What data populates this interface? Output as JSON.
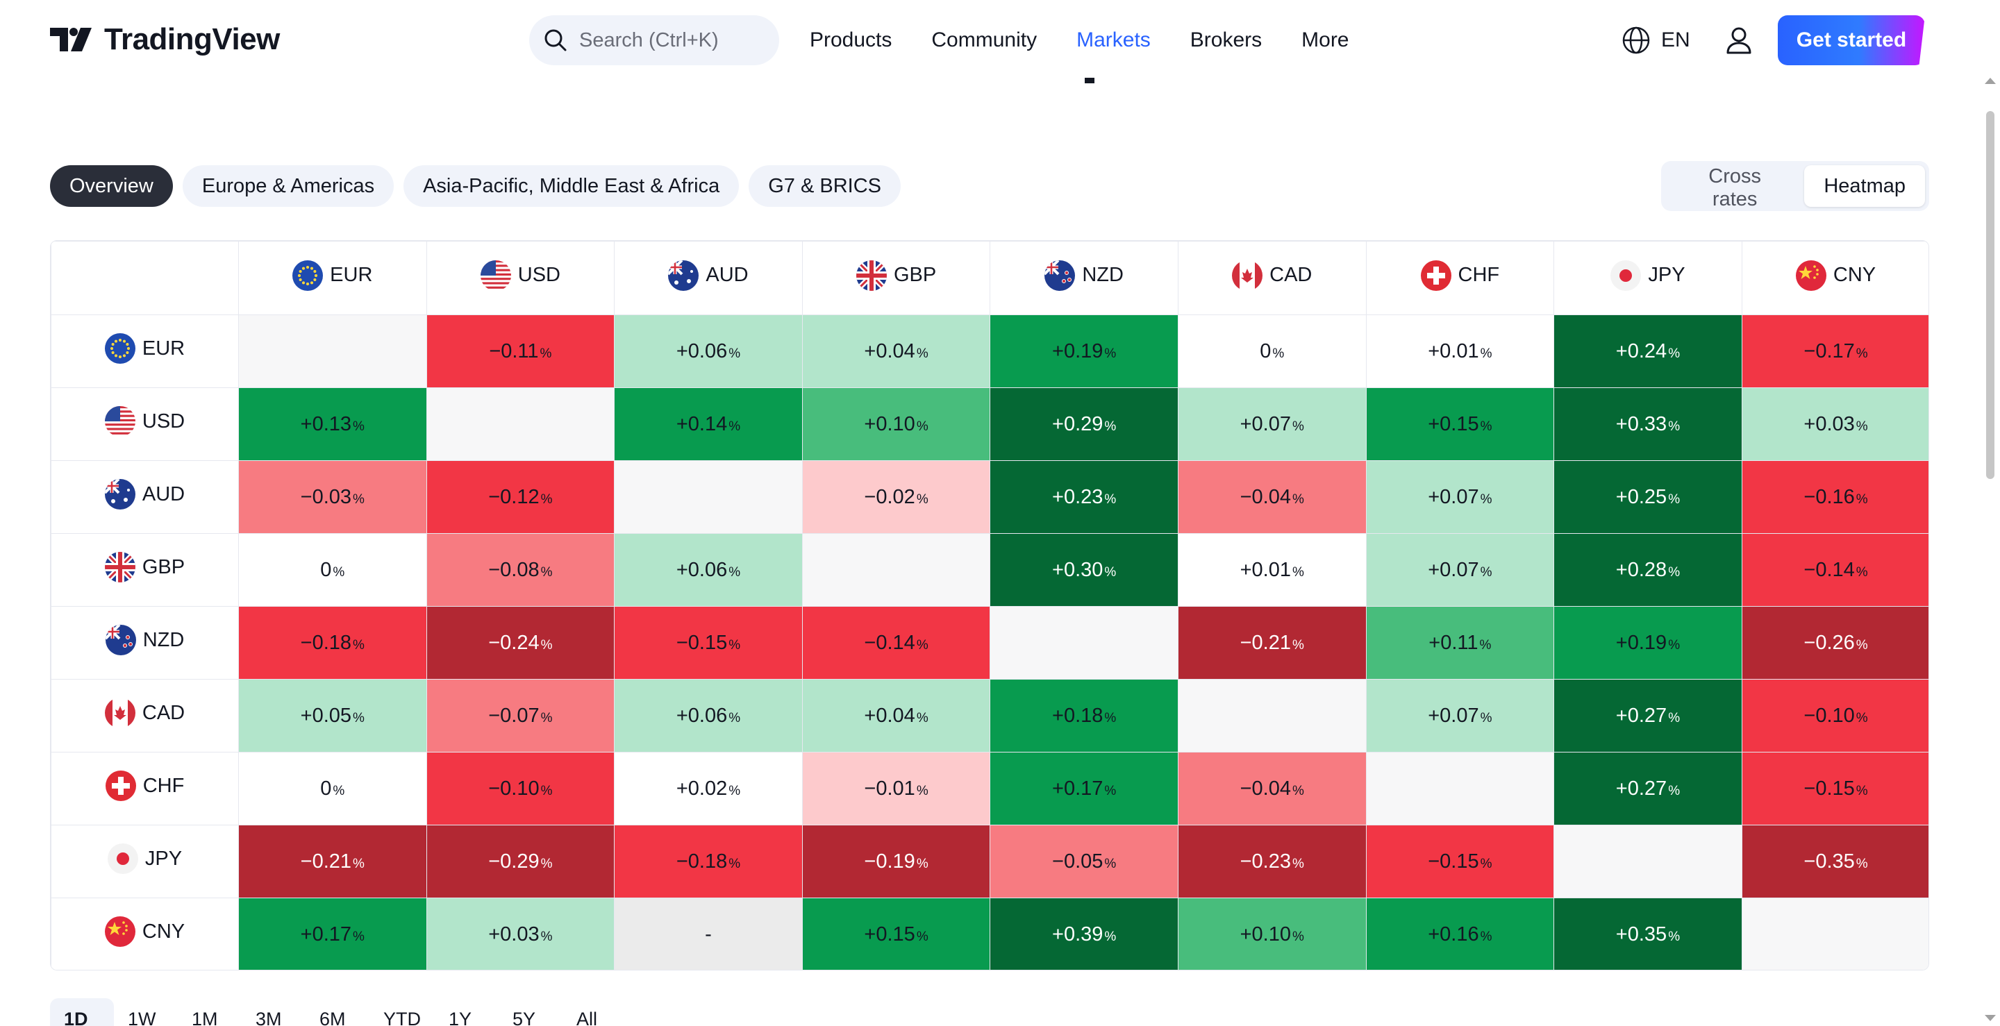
{
  "header": {
    "logo_text": "TradingView",
    "search_placeholder": "Search (Ctrl+K)",
    "nav": [
      {
        "label": "Products",
        "active": false
      },
      {
        "label": "Community",
        "active": false
      },
      {
        "label": "Markets",
        "active": true
      },
      {
        "label": "Brokers",
        "active": false
      },
      {
        "label": "More",
        "active": false
      }
    ],
    "language": "EN",
    "cta_label": "Get started"
  },
  "region_tabs": [
    "Overview",
    "Europe & Americas",
    "Asia-Pacific, Middle East & Africa",
    "G7 & BRICS"
  ],
  "active_region_tab": "Overview",
  "view_toggle": [
    "Cross rates",
    "Heatmap"
  ],
  "active_view": "Heatmap",
  "heatmap": {
    "currencies": [
      "EUR",
      "USD",
      "AUD",
      "GBP",
      "NZD",
      "CAD",
      "CHF",
      "JPY",
      "CNY"
    ],
    "unit": "%",
    "rows": [
      {
        "base": "EUR",
        "cells": [
          null,
          "−0.11",
          "+0.06",
          "+0.04",
          "+0.19",
          "0",
          "+0.01",
          "+0.24",
          "−0.17"
        ]
      },
      {
        "base": "USD",
        "cells": [
          "+0.13",
          null,
          "+0.14",
          "+0.10",
          "+0.29",
          "+0.07",
          "+0.15",
          "+0.33",
          "+0.03"
        ]
      },
      {
        "base": "AUD",
        "cells": [
          "−0.03",
          "−0.12",
          null,
          "−0.02",
          "+0.23",
          "−0.04",
          "+0.07",
          "+0.25",
          "−0.16"
        ]
      },
      {
        "base": "GBP",
        "cells": [
          "0",
          "−0.08",
          "+0.06",
          null,
          "+0.30",
          "+0.01",
          "+0.07",
          "+0.28",
          "−0.14"
        ]
      },
      {
        "base": "NZD",
        "cells": [
          "−0.18",
          "−0.24",
          "−0.15",
          "−0.14",
          null,
          "−0.21",
          "+0.11",
          "+0.19",
          "−0.26"
        ]
      },
      {
        "base": "CAD",
        "cells": [
          "+0.05",
          "−0.07",
          "+0.06",
          "+0.04",
          "+0.18",
          null,
          "+0.07",
          "+0.27",
          "−0.10"
        ]
      },
      {
        "base": "CHF",
        "cells": [
          "0",
          "−0.10",
          "+0.02",
          "−0.01",
          "+0.17",
          "−0.04",
          null,
          "+0.27",
          "−0.15"
        ]
      },
      {
        "base": "JPY",
        "cells": [
          "−0.21",
          "−0.29",
          "−0.18",
          "−0.19",
          "−0.05",
          "−0.23",
          "−0.15",
          null,
          "−0.35"
        ]
      },
      {
        "base": "CNY",
        "cells": [
          "+0.17",
          "+0.03",
          "-",
          "+0.15",
          "+0.39",
          "+0.10",
          "+0.16",
          "+0.35",
          null
        ]
      }
    ],
    "cell_classes": [
      [
        "c-empty",
        "c-r3",
        "c-g1",
        "c-g1",
        "c-g3",
        "c-zero",
        "c-zero",
        "c-g4",
        "c-r3"
      ],
      [
        "c-g3",
        "c-empty",
        "c-g3",
        "c-g2",
        "c-g4",
        "c-g1",
        "c-g3",
        "c-g4",
        "c-g1"
      ],
      [
        "c-r2",
        "c-r3",
        "c-empty",
        "c-r1",
        "c-g4",
        "c-r2",
        "c-g1",
        "c-g4",
        "c-r3"
      ],
      [
        "c-zero",
        "c-r2",
        "c-g1",
        "c-empty",
        "c-g4",
        "c-zero",
        "c-g1",
        "c-g4",
        "c-r3"
      ],
      [
        "c-r3",
        "c-r4",
        "c-r3",
        "c-r3",
        "c-empty",
        "c-r4",
        "c-g2",
        "c-g3",
        "c-r4"
      ],
      [
        "c-g1",
        "c-r2",
        "c-g1",
        "c-g1",
        "c-g3",
        "c-empty",
        "c-g1",
        "c-g4",
        "c-r3"
      ],
      [
        "c-zero",
        "c-r3",
        "c-zero",
        "c-r1",
        "c-g3",
        "c-r2",
        "c-empty",
        "c-g4",
        "c-r3"
      ],
      [
        "c-r4",
        "c-r4",
        "c-r3",
        "c-r4",
        "c-r2",
        "c-r4",
        "c-r3",
        "c-empty",
        "c-r4"
      ],
      [
        "c-g3",
        "c-g1",
        "c-na",
        "c-g3",
        "c-g4",
        "c-g2",
        "c-g3",
        "c-g4",
        "c-empty"
      ]
    ]
  },
  "periods": [
    "1D",
    "1W",
    "1M",
    "3M",
    "6M",
    "YTD",
    "1Y",
    "5Y",
    "All"
  ],
  "active_period": "1D",
  "colors": {
    "accent": "#2962ff",
    "strong_green": "#056834",
    "green": "#089b4f",
    "light_green": "#b2e5cb",
    "strong_red": "#b22833",
    "red": "#f23645",
    "light_red": "#fdcacc"
  },
  "icons": {
    "search": "search-icon",
    "globe": "globe-icon",
    "user": "user-icon"
  }
}
